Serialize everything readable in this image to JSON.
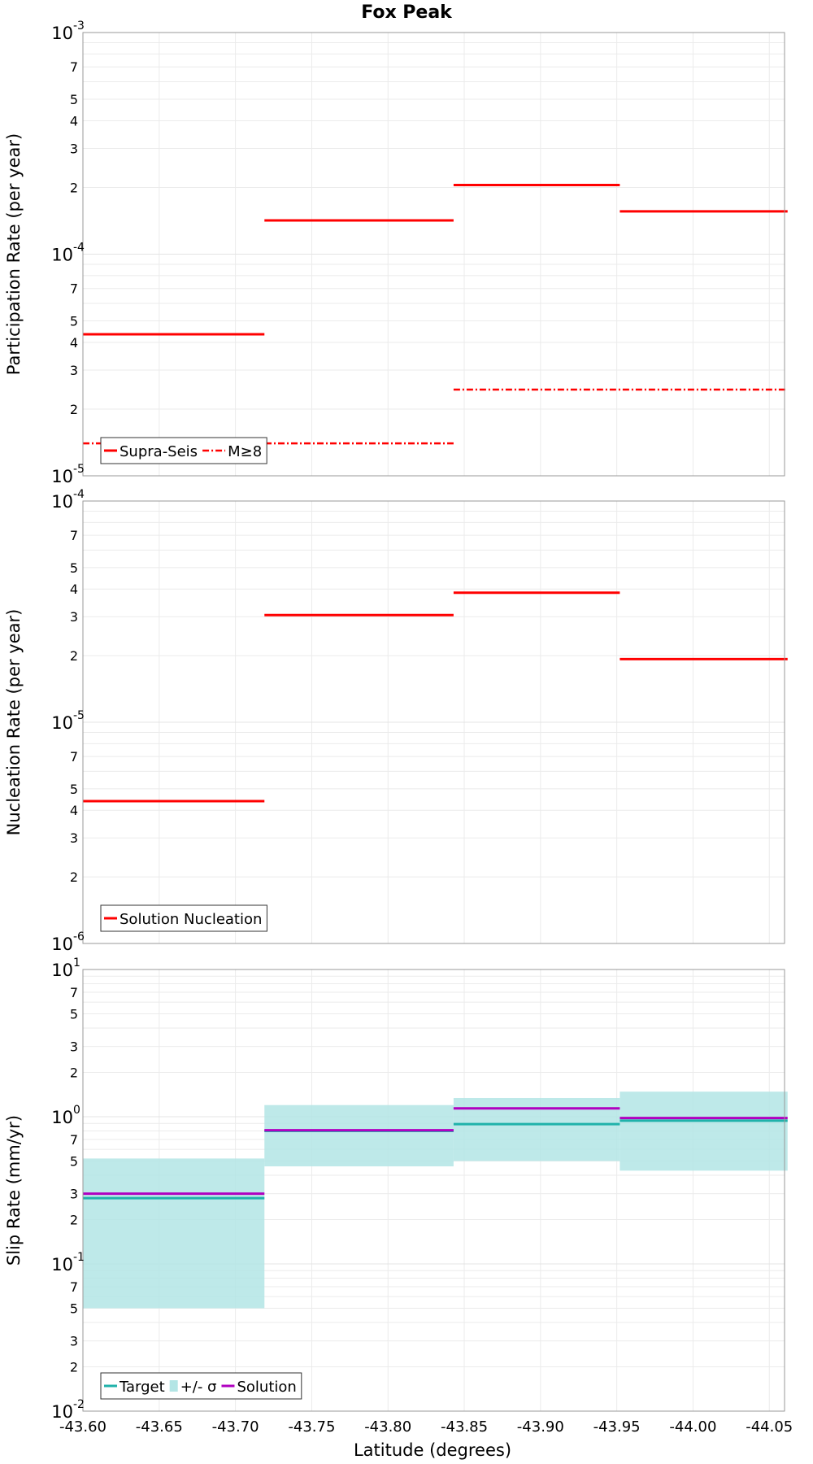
{
  "figure": {
    "title": "Fox Peak",
    "xlabel": "Latitude (degrees)",
    "x_ticks": [
      "-43.60",
      "-43.65",
      "-43.70",
      "-43.75",
      "-43.80",
      "-43.85",
      "-43.90",
      "-43.95",
      "-44.00",
      "-44.05"
    ],
    "xlim": [
      -43.6,
      -44.06
    ]
  },
  "chart_data": [
    {
      "type": "line",
      "subtype": "step-segments",
      "ylabel": "Participation Rate (per year)",
      "y_scale": "log",
      "ylim": [
        1e-05,
        0.001
      ],
      "y_ticks": [
        {
          "major": "10",
          "exp": "-3"
        },
        {
          "minor": "7"
        },
        {
          "minor": "5"
        },
        {
          "minor": "4"
        },
        {
          "minor": "3"
        },
        {
          "minor": "2"
        },
        {
          "major": "10",
          "exp": "-4"
        },
        {
          "minor": "7"
        },
        {
          "minor": "5"
        },
        {
          "minor": "4"
        },
        {
          "minor": "3"
        },
        {
          "minor": "2"
        },
        {
          "major": "10",
          "exp": "-5"
        }
      ],
      "legend_position": "bottom-left",
      "series": [
        {
          "name": "Supra-Seis",
          "color": "#ff0000",
          "style": "solid",
          "segments": [
            {
              "x0": -43.6,
              "x1": -43.719,
              "y": 4.35e-05
            },
            {
              "x0": -43.719,
              "x1": -43.843,
              "y": 0.000142
            },
            {
              "x0": -43.843,
              "x1": -43.952,
              "y": 0.000205
            },
            {
              "x0": -43.952,
              "x1": -44.062,
              "y": 0.000156
            }
          ]
        },
        {
          "name": "M≥8",
          "color": "#ff0000",
          "style": "dashdot",
          "segments": [
            {
              "x0": -43.6,
              "x1": -43.843,
              "y": 1.4e-05
            },
            {
              "x0": -43.843,
              "x1": -44.062,
              "y": 2.45e-05
            }
          ]
        }
      ]
    },
    {
      "type": "line",
      "subtype": "step-segments",
      "ylabel": "Nucleation Rate (per year)",
      "y_scale": "log",
      "ylim": [
        1e-06,
        0.0001
      ],
      "y_ticks": [
        {
          "major": "10",
          "exp": "-4"
        },
        {
          "minor": "7"
        },
        {
          "minor": "5"
        },
        {
          "minor": "4"
        },
        {
          "minor": "3"
        },
        {
          "minor": "2"
        },
        {
          "major": "10",
          "exp": "-5"
        },
        {
          "minor": "7"
        },
        {
          "minor": "5"
        },
        {
          "minor": "4"
        },
        {
          "minor": "3"
        },
        {
          "minor": "2"
        },
        {
          "major": "10",
          "exp": "-6"
        }
      ],
      "legend_position": "bottom-left",
      "series": [
        {
          "name": "Solution Nucleation",
          "color": "#ff0000",
          "style": "solid",
          "segments": [
            {
              "x0": -43.6,
              "x1": -43.719,
              "y": 4.4e-06
            },
            {
              "x0": -43.719,
              "x1": -43.843,
              "y": 3.05e-05
            },
            {
              "x0": -43.843,
              "x1": -43.952,
              "y": 3.85e-05
            },
            {
              "x0": -43.952,
              "x1": -44.062,
              "y": 1.93e-05
            }
          ]
        }
      ]
    },
    {
      "type": "line",
      "subtype": "step-segments-with-band",
      "ylabel": "Slip Rate (mm/yr)",
      "y_scale": "log",
      "ylim": [
        0.01,
        10
      ],
      "y_ticks": [
        {
          "major": "10",
          "exp": "1"
        },
        {
          "minor": "7"
        },
        {
          "minor": "5"
        },
        {
          "minor": "3"
        },
        {
          "minor": "2"
        },
        {
          "major": "10",
          "exp": "0"
        },
        {
          "minor": "7"
        },
        {
          "minor": "5"
        },
        {
          "minor": "3"
        },
        {
          "minor": "2"
        },
        {
          "major": "10",
          "exp": "-1"
        },
        {
          "minor": "7"
        },
        {
          "minor": "5"
        },
        {
          "minor": "3"
        },
        {
          "minor": "2"
        },
        {
          "major": "10",
          "exp": "-2"
        }
      ],
      "legend_position": "bottom-left",
      "band": {
        "name": "+/- σ",
        "color": "#b3e5e5",
        "segments": [
          {
            "x0": -43.6,
            "x1": -43.719,
            "low": 0.05,
            "high": 0.52
          },
          {
            "x0": -43.719,
            "x1": -43.843,
            "low": 0.46,
            "high": 1.2
          },
          {
            "x0": -43.843,
            "x1": -43.952,
            "low": 0.5,
            "high": 1.34
          },
          {
            "x0": -43.952,
            "x1": -44.062,
            "low": 0.43,
            "high": 1.48
          }
        ]
      },
      "series": [
        {
          "name": "Target",
          "color": "#20b2aa",
          "style": "solid",
          "segments": [
            {
              "x0": -43.6,
              "x1": -43.719,
              "y": 0.28
            },
            {
              "x0": -43.719,
              "x1": -43.843,
              "y": 0.8
            },
            {
              "x0": -43.843,
              "x1": -43.952,
              "y": 0.89
            },
            {
              "x0": -43.952,
              "x1": -44.062,
              "y": 0.94
            }
          ]
        },
        {
          "name": "Solution",
          "color": "#b000c0",
          "style": "solid",
          "segments": [
            {
              "x0": -43.6,
              "x1": -43.719,
              "y": 0.3
            },
            {
              "x0": -43.719,
              "x1": -43.843,
              "y": 0.81
            },
            {
              "x0": -43.843,
              "x1": -43.952,
              "y": 1.14
            },
            {
              "x0": -43.952,
              "x1": -44.062,
              "y": 0.98
            }
          ]
        }
      ]
    }
  ]
}
